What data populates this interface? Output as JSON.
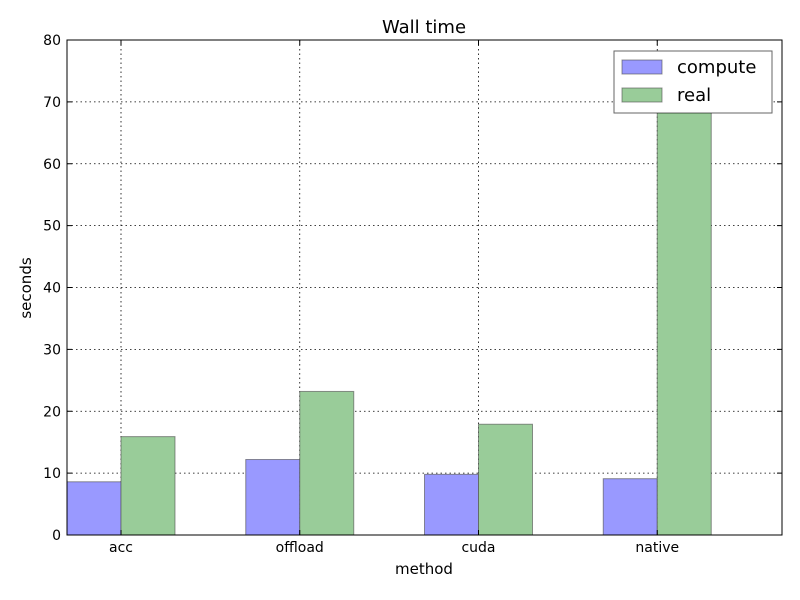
{
  "chart_data": {
    "type": "bar",
    "title": "Wall time",
    "xlabel": "method",
    "ylabel": "seconds",
    "categories": [
      "acc",
      "offload",
      "cuda",
      "native"
    ],
    "ylim": [
      0,
      80
    ],
    "yticks": [
      0,
      10,
      20,
      30,
      40,
      50,
      60,
      70,
      80
    ],
    "grid": true,
    "legend_position": "top-right",
    "series": [
      {
        "name": "compute",
        "color": "#9999ff",
        "values": [
          8.6,
          12.2,
          9.8,
          9.1
        ]
      },
      {
        "name": "real",
        "color": "#99cc99",
        "values": [
          15.9,
          23.2,
          17.9,
          70.8
        ]
      }
    ]
  }
}
